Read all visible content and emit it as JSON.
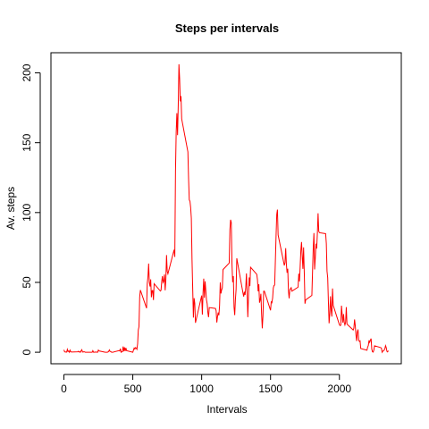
{
  "chart_data": {
    "type": "line",
    "title": "Steps per intervals",
    "x_label": "Intervals",
    "y_label": "Av. steps",
    "x": [
      0,
      5,
      10,
      15,
      20,
      25,
      30,
      35,
      40,
      45,
      50,
      55,
      100,
      105,
      110,
      115,
      120,
      125,
      130,
      135,
      140,
      145,
      150,
      155,
      200,
      205,
      210,
      215,
      220,
      225,
      230,
      235,
      240,
      245,
      250,
      255,
      300,
      305,
      310,
      315,
      320,
      325,
      330,
      335,
      340,
      345,
      350,
      355,
      400,
      405,
      410,
      415,
      420,
      425,
      430,
      435,
      440,
      445,
      450,
      455,
      500,
      505,
      510,
      515,
      520,
      525,
      530,
      535,
      540,
      545,
      550,
      555,
      600,
      605,
      610,
      615,
      620,
      625,
      630,
      635,
      640,
      645,
      650,
      655,
      700,
      705,
      710,
      715,
      720,
      725,
      730,
      735,
      740,
      745,
      750,
      755,
      800,
      805,
      810,
      815,
      820,
      825,
      830,
      835,
      840,
      845,
      850,
      855,
      900,
      905,
      910,
      915,
      920,
      925,
      930,
      935,
      940,
      945,
      950,
      955,
      1000,
      1005,
      1010,
      1015,
      1020,
      1025,
      1030,
      1035,
      1040,
      1045,
      1050,
      1055,
      1100,
      1105,
      1110,
      1115,
      1120,
      1125,
      1130,
      1135,
      1140,
      1145,
      1150,
      1155,
      1200,
      1205,
      1210,
      1215,
      1220,
      1225,
      1230,
      1235,
      1240,
      1245,
      1250,
      1255,
      1300,
      1305,
      1310,
      1315,
      1320,
      1325,
      1330,
      1335,
      1340,
      1345,
      1350,
      1355,
      1400,
      1405,
      1410,
      1415,
      1420,
      1425,
      1430,
      1435,
      1440,
      1445,
      1450,
      1455,
      1500,
      1505,
      1510,
      1515,
      1520,
      1525,
      1530,
      1535,
      1540,
      1545,
      1550,
      1555,
      1600,
      1605,
      1610,
      1615,
      1620,
      1625,
      1630,
      1635,
      1640,
      1645,
      1650,
      1655,
      1700,
      1705,
      1710,
      1715,
      1720,
      1725,
      1730,
      1735,
      1740,
      1745,
      1750,
      1755,
      1800,
      1805,
      1810,
      1815,
      1820,
      1825,
      1830,
      1835,
      1840,
      1845,
      1850,
      1855,
      1900,
      1905,
      1910,
      1915,
      1920,
      1925,
      1930,
      1935,
      1940,
      1945,
      1950,
      1955,
      2000,
      2005,
      2010,
      2015,
      2020,
      2025,
      2030,
      2035,
      2040,
      2045,
      2050,
      2055,
      2100,
      2105,
      2110,
      2115,
      2120,
      2125,
      2130,
      2135,
      2140,
      2145,
      2150,
      2155,
      2200,
      2205,
      2210,
      2215,
      2220,
      2225,
      2230,
      2235,
      2240,
      2245,
      2250,
      2255,
      2300,
      2305,
      2310,
      2315,
      2320,
      2325,
      2330,
      2335,
      2340,
      2345,
      2350,
      2355
    ],
    "series": [
      {
        "color": "#ff0000",
        "values": [
          1.72,
          0.34,
          0.13,
          0.15,
          0.08,
          2.09,
          0.53,
          0.87,
          0,
          1.47,
          0.3,
          0.13,
          0.32,
          0.68,
          0.15,
          0.34,
          0,
          1.11,
          1.83,
          0.17,
          0.17,
          0.38,
          0.26,
          0,
          0,
          0,
          1.13,
          0,
          0,
          0.13,
          0,
          0.23,
          0,
          0,
          1.55,
          0.94,
          0,
          0,
          0,
          0,
          0.21,
          0.62,
          1.62,
          0.58,
          0.49,
          0.08,
          0,
          0,
          1.19,
          0.94,
          2.57,
          0,
          0.34,
          0.36,
          4.11,
          0.66,
          3.49,
          0.83,
          3.11,
          1.11,
          0,
          1.57,
          3,
          2.25,
          3.32,
          2.96,
          2.09,
          6.06,
          16.02,
          18.34,
          39.45,
          44.49,
          31.49,
          49.26,
          53.77,
          63.45,
          49.96,
          47.08,
          52.15,
          39.34,
          44.02,
          44.17,
          37.36,
          49.04,
          43.81,
          44.38,
          50.51,
          54.51,
          49.92,
          50.98,
          55.68,
          44.32,
          52.26,
          69.55,
          57.85,
          56.15,
          73.38,
          68.21,
          129.43,
          157.53,
          171.15,
          155.4,
          177.3,
          206.17,
          195.92,
          179.57,
          183.4,
          167.02,
          143.45,
          124.04,
          109.11,
          108.11,
          103.72,
          95.96,
          66.21,
          45.23,
          24.79,
          38.75,
          34.98,
          21.06,
          40.57,
          26.98,
          42.42,
          52.66,
          38.92,
          50.79,
          44.28,
          37.42,
          34.7,
          28.34,
          25.09,
          31.94,
          31.36,
          29.68,
          21.32,
          25.55,
          28.38,
          26.47,
          33.43,
          49.98,
          42.04,
          44.6,
          46.04,
          59.19,
          63.87,
          87.7,
          94.85,
          92.77,
          63.4,
          50.17,
          54.47,
          32.42,
          26.53,
          37.74,
          45.06,
          67.28,
          42.34,
          39.88,
          43.26,
          40.98,
          46.25,
          56.43,
          42.75,
          25.13,
          39.96,
          53.55,
          47.32,
          60.81,
          55.75,
          51.96,
          43.58,
          48.7,
          35.47,
          37.55,
          41.85,
          27.51,
          17.11,
          26.08,
          43.62,
          43.77,
          30.02,
          36.08,
          35.49,
          38.85,
          45.96,
          47.75,
          48.13,
          65.32,
          82.91,
          98.66,
          102.11,
          83.96,
          62.13,
          64.13,
          74.55,
          63.17,
          56.91,
          59.77,
          43.87,
          38.57,
          44.66,
          45.45,
          46.21,
          43.68,
          46.62,
          56.3,
          50.72,
          61.23,
          72.72,
          78.94,
          68.94,
          59.66,
          75.09,
          56.51,
          34.77,
          37.45,
          40.68,
          58.02,
          74.7,
          85.32,
          59.26,
          67.77,
          77.7,
          74.25,
          85.34,
          99.45,
          86.58,
          85.6,
          84.87,
          77.83,
          58.04,
          53.36,
          36.32,
          20.72,
          27.4,
          40.02,
          30.21,
          25.55,
          45.66,
          33.53,
          19.62,
          19.02,
          19.34,
          33.34,
          26.81,
          21.17,
          27.3,
          21.34,
          19.55,
          21.32,
          32.3,
          20.15,
          15.94,
          17.23,
          23.45,
          19.25,
          12.45,
          8.02,
          14.66,
          16.3,
          8.68,
          7.79,
          8.13,
          2.62,
          1.45,
          3.68,
          4.81,
          8.51,
          7.08,
          8.7,
          9.75,
          2.21,
          0.32,
          0.11,
          1.6,
          4.6,
          3.3,
          2.85,
          0,
          0.83,
          0.96,
          1.58,
          2.6,
          4.7,
          3.3,
          0.64,
          0.23,
          1.08
        ]
      }
    ],
    "xlim": [
      -94.2,
      2449.2
    ],
    "xticks": [
      0,
      500,
      1000,
      1500,
      2000
    ],
    "ylim": [
      -8.25,
      214.42
    ],
    "yticks": [
      0,
      50,
      100,
      150,
      200
    ]
  }
}
